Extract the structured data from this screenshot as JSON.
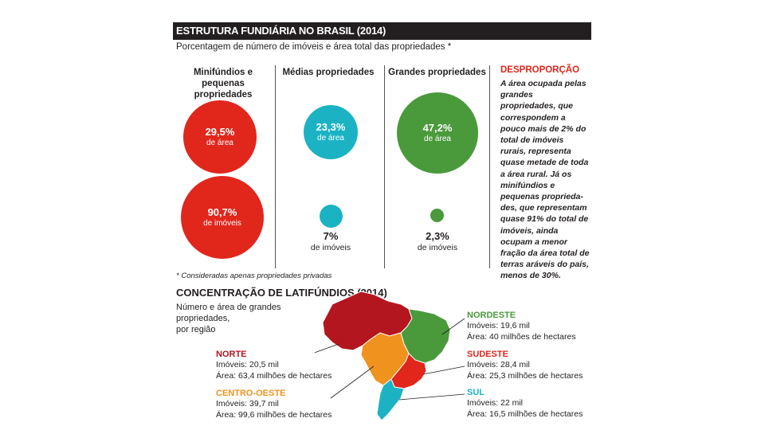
{
  "header": {
    "title": "ESTRUTURA FUNDIÁRIA NO BRASIL (2014)",
    "subtitle": "Porcentagem de número de imóveis e área total das propriedades *"
  },
  "columns": [
    {
      "heading_line1": "Minifúndios e pequenas",
      "heading_line2": "propriedades",
      "area_value": "29,5%",
      "area_label": "de área",
      "imoveis_value": "90,7%",
      "imoveis_label": "de imóveis",
      "imoveis_fraction": 0.907,
      "area_fraction": 0.295,
      "color": "#e1261c"
    },
    {
      "heading_line1": "Médias propriedades",
      "heading_line2": "",
      "area_value": "23,3%",
      "area_label": "de área",
      "imoveis_value": "7%",
      "imoveis_label": "de imóveis",
      "imoveis_fraction": 0.07,
      "area_fraction": 0.233,
      "color": "#1bb3c4"
    },
    {
      "heading_line1": "Grandes propriedades",
      "heading_line2": "",
      "area_value": "47,2%",
      "area_label": "de área",
      "imoveis_value": "2,3%",
      "imoveis_label": "de imóveis",
      "imoveis_fraction": 0.023,
      "area_fraction": 0.472,
      "color": "#4a9a3c"
    }
  ],
  "desproporcao": {
    "title": "DESPROPORÇÃO",
    "text": "A área ocupada pelas grandes propriedades, que correspondem a pouco mais de 2% do total de imóveis rurais, representa quase metade de toda a área rural. Já os minifúndios e pequenas proprieda-des, que representam quase 91% do total de imóveis, ainda ocupam a menor fração da área total de terras aráveis do país, menos de 30%."
  },
  "footnote": "* Consideradas apenas propriedades privadas",
  "concentracao": {
    "title": "CONCENTRAÇÃO DE LATIFÚNDIOS (2014)",
    "subtitle_line1": "Número e área de grandes propriedades,",
    "subtitle_line2": "por região",
    "regions": [
      {
        "name": "NORTE",
        "imoveis": "Imóveis: 20,5 mil",
        "area": "Área: 63,4 milhões de hectares",
        "color": "#b3161f"
      },
      {
        "name": "CENTRO-OESTE",
        "imoveis": "Imóveis: 39,7 mil",
        "area": "Área: 99,6 milhões de hectares",
        "color": "#f0921e"
      },
      {
        "name": "NORDESTE",
        "imoveis": "Imóveis: 19,6 mil",
        "area": "Área: 40 milhões de hectares",
        "color": "#4a9a3c"
      },
      {
        "name": "SUDESTE",
        "imoveis": "Imóveis: 28,4 mil",
        "area": "Área: 25,3 milhões de hectares",
        "color": "#e1261c"
      },
      {
        "name": "SUL",
        "imoveis": "Imóveis: 22 mil",
        "area": "Área: 16,5 milhões de hectares",
        "color": "#1bb3c4"
      }
    ]
  }
}
